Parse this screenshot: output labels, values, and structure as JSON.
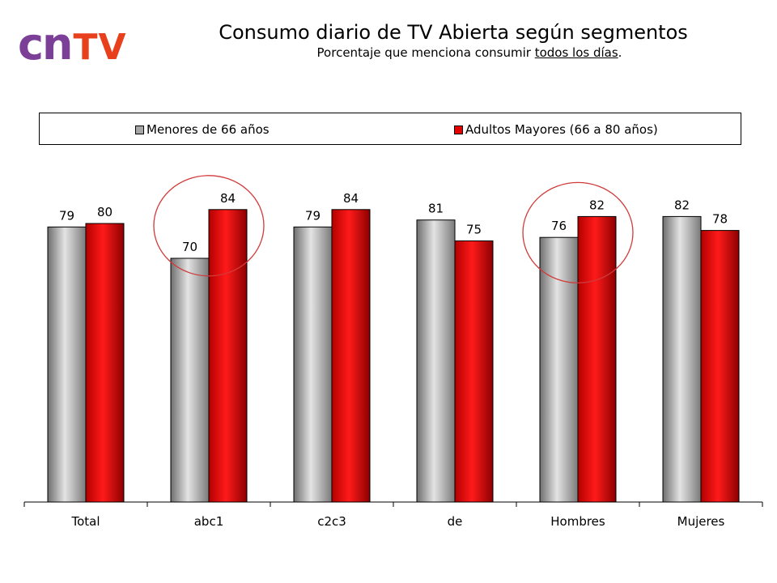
{
  "logo": {
    "part1": "cn",
    "part2": "TV"
  },
  "header": {
    "title": "Consumo diario de TV Abierta según segmentos",
    "subtitle_pre": "Porcentaje que menciona consumir ",
    "subtitle_underlined": "todos los días",
    "subtitle_post": "."
  },
  "colors": {
    "series1": "#a6a6a6",
    "series2": "#e60000",
    "circle": "#d23a3a",
    "axis": "#000000"
  },
  "chart_data": {
    "type": "bar",
    "title": "Consumo diario de TV Abierta según segmentos",
    "subtitle": "Porcentaje que menciona consumir todos los días.",
    "categories": [
      "Total",
      "abc1",
      "c2c3",
      "de",
      "Hombres",
      "Mujeres"
    ],
    "series": [
      {
        "name": "Menores de 66 años",
        "values": [
          79,
          70,
          79,
          81,
          76,
          82
        ]
      },
      {
        "name": "Adultos Mayores (66 a 80 años)",
        "values": [
          80,
          84,
          84,
          75,
          82,
          78
        ]
      }
    ],
    "xlabel": "",
    "ylabel": "",
    "ylim": [
      0,
      100
    ],
    "grid": false,
    "legend_position": "top",
    "highlighted_categories": [
      "abc1",
      "Hombres"
    ]
  }
}
